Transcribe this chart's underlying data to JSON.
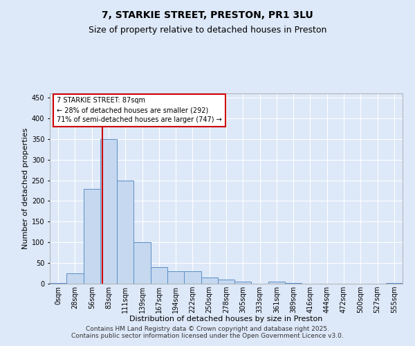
{
  "title": "7, STARKIE STREET, PRESTON, PR1 3LU",
  "subtitle": "Size of property relative to detached houses in Preston",
  "xlabel": "Distribution of detached houses by size in Preston",
  "ylabel": "Number of detached properties",
  "categories": [
    "0sqm",
    "28sqm",
    "56sqm",
    "83sqm",
    "111sqm",
    "139sqm",
    "167sqm",
    "194sqm",
    "222sqm",
    "250sqm",
    "278sqm",
    "305sqm",
    "333sqm",
    "361sqm",
    "389sqm",
    "416sqm",
    "444sqm",
    "472sqm",
    "500sqm",
    "527sqm",
    "555sqm"
  ],
  "values": [
    2,
    25,
    230,
    350,
    250,
    100,
    40,
    30,
    30,
    15,
    10,
    5,
    0,
    5,
    2,
    0,
    0,
    0,
    0,
    0,
    2
  ],
  "bar_color": "#c5d8f0",
  "bar_edge_color": "#5b8ec4",
  "vline_color": "#cc0000",
  "ylim": [
    0,
    460
  ],
  "yticks": [
    0,
    50,
    100,
    150,
    200,
    250,
    300,
    350,
    400,
    450
  ],
  "annotation_text": "7 STARKIE STREET: 87sqm\n← 28% of detached houses are smaller (292)\n71% of semi-detached houses are larger (747) →",
  "annotation_box_color": "#cc0000",
  "annotation_bg": "#ffffff",
  "footer_text": "Contains HM Land Registry data © Crown copyright and database right 2025.\nContains public sector information licensed under the Open Government Licence v3.0.",
  "background_color": "#dde8f8",
  "plot_bg": "#dde8f8",
  "grid_color": "#ffffff",
  "title_fontsize": 10,
  "subtitle_fontsize": 9,
  "axis_label_fontsize": 8,
  "tick_fontsize": 7,
  "footer_fontsize": 6.5,
  "annotation_fontsize": 7
}
